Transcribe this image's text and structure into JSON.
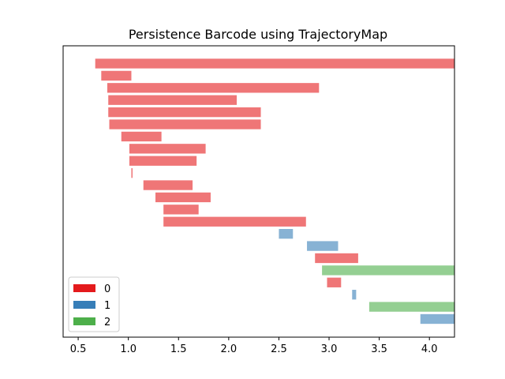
{
  "chart_data": {
    "type": "bar",
    "orientation": "horizontal",
    "title": "Persistence Barcode using TrajectoryMap",
    "xlabel": "",
    "ylabel": "",
    "xlim": [
      0.35,
      4.25
    ],
    "xticks": [
      0.5,
      1.0,
      1.5,
      2.0,
      2.5,
      3.0,
      3.5,
      4.0
    ],
    "xtick_labels": [
      "0.5",
      "1.0",
      "1.5",
      "2.0",
      "2.5",
      "3.0",
      "3.5",
      "4.0"
    ],
    "grid": false,
    "legend_position": "lower-left",
    "legend": [
      {
        "label": "0",
        "dimension": 0,
        "color": "#e41a1c"
      },
      {
        "label": "1",
        "dimension": 1,
        "color": "#377eb8"
      },
      {
        "label": "2",
        "dimension": 2,
        "color": "#4daf4a"
      }
    ],
    "bar_opacity": 0.6,
    "intervals": [
      {
        "birth": 0.67,
        "death": 4.25,
        "dimension": 0
      },
      {
        "birth": 0.73,
        "death": 1.03,
        "dimension": 0
      },
      {
        "birth": 0.79,
        "death": 2.9,
        "dimension": 0
      },
      {
        "birth": 0.8,
        "death": 2.08,
        "dimension": 0
      },
      {
        "birth": 0.8,
        "death": 2.32,
        "dimension": 0
      },
      {
        "birth": 0.81,
        "death": 2.32,
        "dimension": 0
      },
      {
        "birth": 0.93,
        "death": 1.33,
        "dimension": 0
      },
      {
        "birth": 1.01,
        "death": 1.77,
        "dimension": 0
      },
      {
        "birth": 1.01,
        "death": 1.68,
        "dimension": 0
      },
      {
        "birth": 1.03,
        "death": 1.04,
        "dimension": 0
      },
      {
        "birth": 1.15,
        "death": 1.64,
        "dimension": 0
      },
      {
        "birth": 1.27,
        "death": 1.82,
        "dimension": 0
      },
      {
        "birth": 1.35,
        "death": 1.7,
        "dimension": 0
      },
      {
        "birth": 1.35,
        "death": 2.77,
        "dimension": 0
      },
      {
        "birth": 2.5,
        "death": 2.64,
        "dimension": 1
      },
      {
        "birth": 2.78,
        "death": 3.09,
        "dimension": 1
      },
      {
        "birth": 2.86,
        "death": 3.29,
        "dimension": 0
      },
      {
        "birth": 2.93,
        "death": 4.25,
        "dimension": 2
      },
      {
        "birth": 2.98,
        "death": 3.12,
        "dimension": 0
      },
      {
        "birth": 3.23,
        "death": 3.27,
        "dimension": 1
      },
      {
        "birth": 3.4,
        "death": 4.25,
        "dimension": 2
      },
      {
        "birth": 3.91,
        "death": 4.25,
        "dimension": 1
      }
    ]
  }
}
